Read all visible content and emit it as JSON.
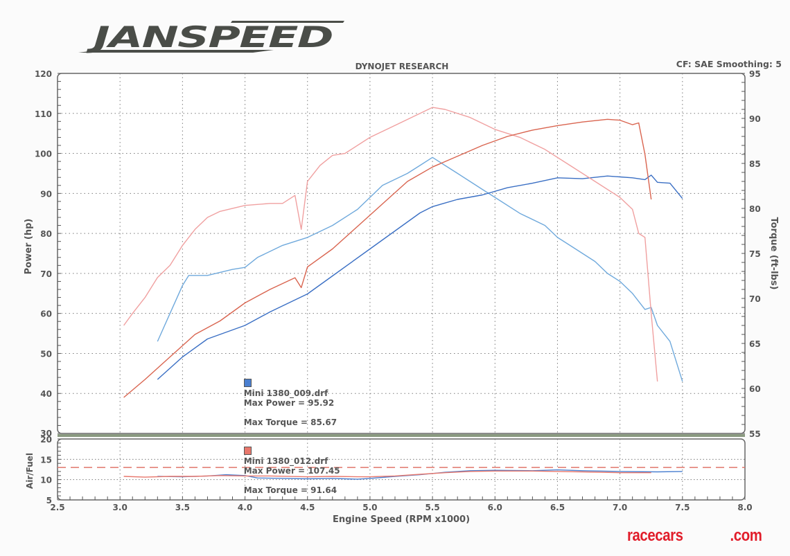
{
  "header": {
    "brand": "JANSPEED",
    "chart_title": "DYNOJET RESEARCH",
    "correction": "CF: SAE  Smoothing: 5"
  },
  "footer": {
    "site_part1": "racecars",
    "site_part2": ".com"
  },
  "colors": {
    "run_009_power": "#6fa9dc",
    "run_009_torque": "#3a6fc4",
    "run_012_power": "#f0a0a0",
    "run_012_torque": "#d9644f",
    "afr_target": "#e0766a",
    "grid": "#777777",
    "frame": "#666666"
  },
  "legend": [
    {
      "file": "Mini 1380_009.drf",
      "max_power_label": "Max Power = 95.92",
      "max_torque_label": "Max Torque = 85.67",
      "color": "#4a7fd0"
    },
    {
      "file": "Mini 1380_012.drf",
      "max_power_label": "Max Power = 107.45",
      "max_torque_label": "Max Torque = 91.64",
      "color": "#e8776c"
    }
  ],
  "chart_data": [
    {
      "type": "line",
      "title": "DYNOJET RESEARCH",
      "subtitle": "CF: SAE  Smoothing: 5",
      "xlabel": "Engine Speed (RPM x1000)",
      "ylabel": "Power (hp)",
      "y2label": "Torque (ft-lbs)",
      "xlim": [
        2.5,
        8.0
      ],
      "ylim": [
        30,
        120
      ],
      "y2lim": [
        55,
        95
      ],
      "x_ticks": [
        "2.5",
        "3.0",
        "3.5",
        "4.0",
        "4.5",
        "5.0",
        "5.5",
        "6.0",
        "6.5",
        "7.0",
        "7.5",
        "8.0"
      ],
      "y_ticks": [
        "30",
        "40",
        "50",
        "60",
        "70",
        "80",
        "90",
        "100",
        "110",
        "120"
      ],
      "y2_ticks": [
        "55",
        "60",
        "65",
        "70",
        "75",
        "80",
        "85",
        "90",
        "95"
      ],
      "grid": true,
      "legend_position": "inside-lower-center",
      "series": [
        {
          "name": "Mini 1380_009.drf Power (hp)",
          "axis": "left",
          "color": "#6fa9dc",
          "x": [
            3.3,
            3.4,
            3.5,
            3.55,
            3.7,
            3.9,
            4.0,
            4.1,
            4.3,
            4.5,
            4.7,
            4.9,
            5.1,
            5.3,
            5.4,
            5.5,
            5.6,
            5.7,
            5.8,
            5.9,
            6.0,
            6.2,
            6.4,
            6.5,
            6.6,
            6.8,
            6.9,
            7.0,
            7.1,
            7.2,
            7.25,
            7.3,
            7.4,
            7.5
          ],
          "values": [
            53,
            60,
            67,
            69.5,
            69.5,
            71,
            71.5,
            74,
            77,
            79,
            82,
            86,
            92,
            95,
            97,
            99,
            97,
            95,
            93,
            91,
            89,
            85,
            82,
            79,
            77,
            73,
            70,
            68,
            65,
            61,
            61.5,
            57,
            53,
            43
          ]
        },
        {
          "name": "Mini 1380_009.drf Torque (ft-lbs)",
          "axis": "right",
          "color": "#3a6fc4",
          "x": [
            3.3,
            3.5,
            3.7,
            4.0,
            4.2,
            4.5,
            4.7,
            5.0,
            5.2,
            5.4,
            5.5,
            5.7,
            5.9,
            6.1,
            6.3,
            6.5,
            6.7,
            6.9,
            7.0,
            7.1,
            7.2,
            7.25,
            7.3,
            7.4,
            7.5
          ],
          "values": [
            61,
            63.5,
            65.5,
            67,
            68.5,
            70.5,
            72.5,
            75.5,
            77.5,
            79.5,
            80.2,
            81,
            81.5,
            82.3,
            82.8,
            83.4,
            83.3,
            83.6,
            83.5,
            83.4,
            83.2,
            83.7,
            82.9,
            82.8,
            81.1
          ]
        },
        {
          "name": "Mini 1380_012.drf Power (hp)",
          "axis": "left",
          "color": "#f0a0a0",
          "x": [
            3.03,
            3.1,
            3.2,
            3.3,
            3.4,
            3.5,
            3.6,
            3.7,
            3.8,
            4.0,
            4.2,
            4.3,
            4.4,
            4.45,
            4.5,
            4.6,
            4.7,
            4.8,
            5.0,
            5.2,
            5.4,
            5.5,
            5.6,
            5.8,
            6.0,
            6.2,
            6.4,
            6.6,
            6.8,
            7.0,
            7.1,
            7.15,
            7.2,
            7.25,
            7.3
          ],
          "values": [
            57,
            60,
            64,
            69,
            72,
            77,
            81,
            84,
            85.5,
            87,
            87.5,
            87.5,
            89.5,
            81,
            93,
            97,
            99.5,
            100,
            104,
            107,
            110,
            111.5,
            111,
            109,
            106,
            104,
            101,
            97,
            93,
            89,
            86,
            80,
            79,
            60,
            43
          ]
        },
        {
          "name": "Mini 1380_012.drf Torque (ft-lbs)",
          "axis": "right",
          "color": "#d9644f",
          "x": [
            3.03,
            3.2,
            3.4,
            3.6,
            3.8,
            4.0,
            4.2,
            4.4,
            4.45,
            4.5,
            4.7,
            4.9,
            5.1,
            5.3,
            5.5,
            5.7,
            5.9,
            6.1,
            6.3,
            6.5,
            6.7,
            6.9,
            7.0,
            7.1,
            7.15,
            7.2,
            7.25
          ],
          "values": [
            59,
            61,
            63.5,
            66,
            67.5,
            69.5,
            71,
            72.3,
            71.2,
            73.5,
            75.5,
            78,
            80.5,
            83,
            84.6,
            85.8,
            87,
            88,
            88.7,
            89.2,
            89.6,
            89.9,
            89.8,
            89.3,
            89.5,
            86,
            81
          ]
        }
      ]
    },
    {
      "type": "line",
      "title": "",
      "xlabel": "Engine Speed (RPM x1000)",
      "ylabel": "Air/Fuel",
      "xlim": [
        2.5,
        8.0
      ],
      "ylim": [
        5,
        20
      ],
      "y_ticks": [
        "5",
        "10",
        "15",
        "20"
      ],
      "grid": true,
      "series": [
        {
          "name": "Target AFR",
          "style": "dashed",
          "color": "#e0766a",
          "x": [
            2.5,
            8.0
          ],
          "values": [
            13,
            13
          ]
        },
        {
          "name": "Mini 1380_009.drf AFR",
          "color": "#4a7fd0",
          "x": [
            3.3,
            3.5,
            3.7,
            3.85,
            4.0,
            4.1,
            4.3,
            4.5,
            4.7,
            4.9,
            5.0,
            5.2,
            5.4,
            5.6,
            5.8,
            6.0,
            6.3,
            6.5,
            6.7,
            7.0,
            7.3,
            7.5
          ],
          "values": [
            10.8,
            10.7,
            10.9,
            11.2,
            11,
            10.4,
            10.3,
            10.2,
            10.3,
            10.1,
            10.3,
            10.8,
            11.2,
            11.8,
            12.2,
            12.3,
            12.2,
            12.4,
            12.2,
            12,
            11.9,
            12
          ]
        },
        {
          "name": "Mini 1380_012.drf AFR",
          "color": "#e8776c",
          "x": [
            3.03,
            3.2,
            3.4,
            3.6,
            3.8,
            4.0,
            4.2,
            4.5,
            4.7,
            4.9,
            5.0,
            5.2,
            5.4,
            5.6,
            5.8,
            6.0,
            6.3,
            6.5,
            6.7,
            7.0,
            7.25
          ],
          "values": [
            10.8,
            10.6,
            10.8,
            10.8,
            11,
            10.9,
            10.9,
            10.7,
            10.8,
            10.7,
            10.7,
            10.9,
            11.3,
            11.7,
            12,
            12.1,
            12.1,
            12,
            11.9,
            11.7,
            11.7
          ]
        }
      ]
    }
  ]
}
